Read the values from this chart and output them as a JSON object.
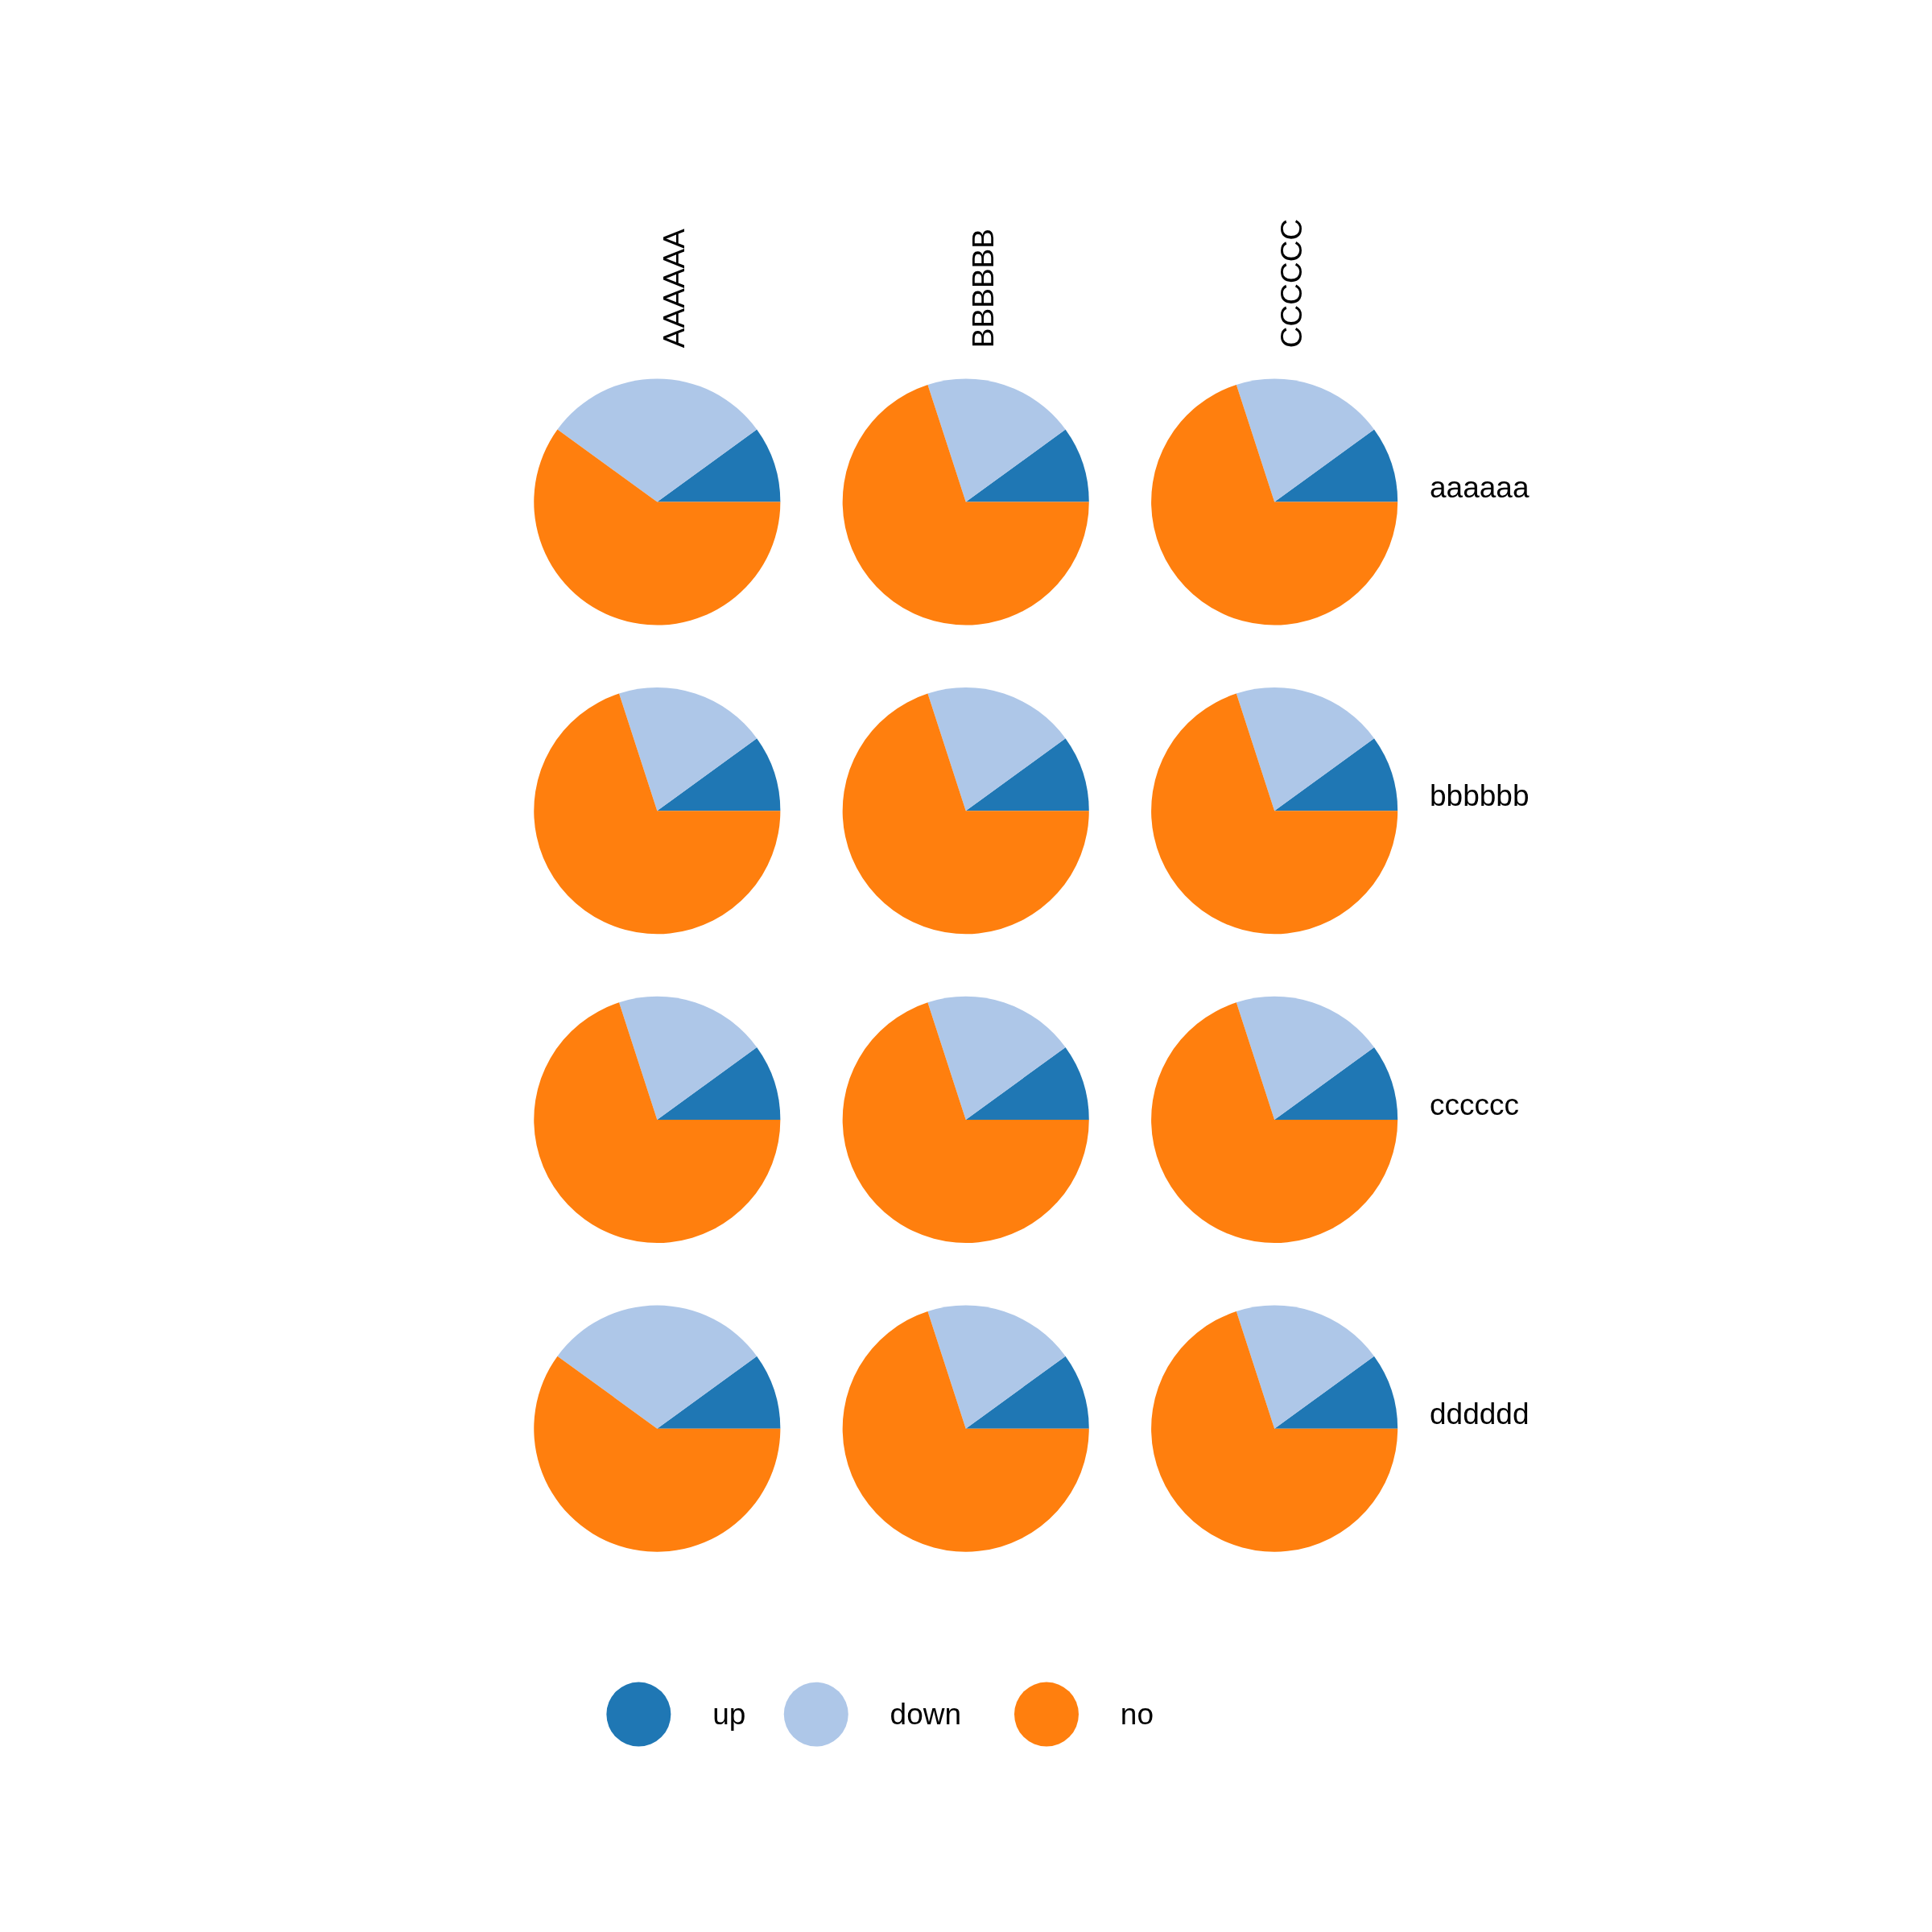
{
  "chart_data": [
    {
      "type": "pie",
      "title": "AAAAAA",
      "categories": [
        "up",
        "down",
        "no"
      ],
      "values": [
        10,
        30,
        60
      ],
      "colors": [
        "#1f77b4",
        "#aec7e8",
        "#ff7f0e"
      ],
      "legend": "bottom"
    },
    {
      "type": "pie",
      "title": "BBBBBB",
      "categories": [
        null,
        null,
        null
      ],
      "values": [
        10,
        20,
        70
      ],
      "colors": [
        "#1f77b4",
        "#aec7e8",
        "#ff7f0e"
      ]
    },
    {
      "type": "pie",
      "title": "CCCCCC",
      "y2label": "aaaaaa",
      "categories": [
        null,
        null,
        null
      ],
      "values": [
        10,
        20,
        70
      ],
      "colors": [
        "#1f77b4",
        "#aec7e8",
        "#ff7f0e"
      ]
    },
    {
      "type": "pie",
      "categories": [
        null,
        null,
        null
      ],
      "values": [
        10,
        20,
        70
      ],
      "colors": [
        "#1f77b4",
        "#aec7e8",
        "#ff7f0e"
      ]
    },
    {
      "type": "pie",
      "categories": [
        null,
        null,
        null
      ],
      "values": [
        10,
        20,
        70
      ],
      "colors": [
        "#1f77b4",
        "#aec7e8",
        "#ff7f0e"
      ]
    },
    {
      "type": "pie",
      "y2label": "bbbbbb",
      "categories": [
        null,
        null,
        null
      ],
      "values": [
        10,
        20,
        70
      ],
      "colors": [
        "#1f77b4",
        "#aec7e8",
        "#ff7f0e"
      ]
    },
    {
      "type": "pie",
      "categories": [
        null,
        null,
        null
      ],
      "values": [
        10,
        20,
        70
      ],
      "colors": [
        "#1f77b4",
        "#aec7e8",
        "#ff7f0e"
      ]
    },
    {
      "type": "pie",
      "categories": [
        null,
        null,
        null
      ],
      "values": [
        10,
        20,
        70
      ],
      "colors": [
        "#1f77b4",
        "#aec7e8",
        "#ff7f0e"
      ]
    },
    {
      "type": "pie",
      "y2label": "cccccc",
      "categories": [
        null,
        null,
        null
      ],
      "values": [
        10,
        20,
        70
      ],
      "colors": [
        "#1f77b4",
        "#aec7e8",
        "#ff7f0e"
      ]
    },
    {
      "type": "pie",
      "categories": [
        null,
        null,
        null
      ],
      "values": [
        10,
        30,
        60
      ],
      "colors": [
        "#1f77b4",
        "#aec7e8",
        "#ff7f0e"
      ]
    },
    {
      "type": "pie",
      "categories": [
        null,
        null,
        null
      ],
      "values": [
        10,
        20,
        70
      ],
      "colors": [
        "#1f77b4",
        "#aec7e8",
        "#ff7f0e"
      ]
    },
    {
      "type": "pie",
      "y2label": "dddddd",
      "categories": [
        null,
        null,
        null
      ],
      "values": [
        10,
        20,
        70
      ],
      "colors": [
        "#1f77b4",
        "#aec7e8",
        "#ff7f0e"
      ]
    }
  ]
}
